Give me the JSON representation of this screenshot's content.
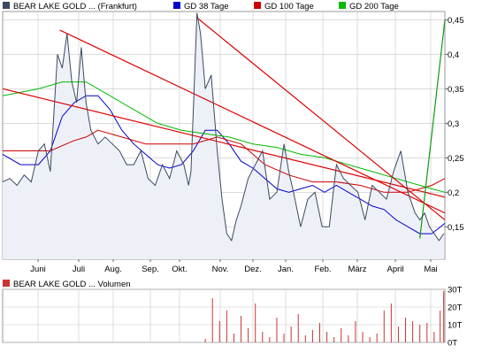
{
  "colors": {
    "price": "#3a4a5e",
    "price_fill": "#eef0f8",
    "gd38": "#0000cc",
    "gd100": "#cc0000",
    "gd200": "#00bb00",
    "trend_red": "#dd0000",
    "trend_green": "#119911",
    "volume": "#cc3333",
    "grid": "#c8c8c8",
    "legend_price_box": "#3a4a5e"
  },
  "legend": {
    "price": "BEAR LAKE GOLD ... (Frankfurt)",
    "gd38": "GD 38 Tage",
    "gd100": "GD 100 Tage",
    "gd200": "GD 200 Tage"
  },
  "volume_legend": "BEAR LAKE GOLD ... Volumen",
  "chart_data": [
    {
      "type": "line",
      "title": "",
      "x_labels": [
        "Juni",
        "Juli",
        "Aug.",
        "Sep.",
        "Okt.",
        "Nov.",
        "Dez.",
        "Jan.",
        "Feb.",
        "März",
        "April",
        "Mai"
      ],
      "y_ticks": [
        "0,45",
        "0,4",
        "0,35",
        "0,3",
        "0,25",
        "0,2",
        "0,15"
      ],
      "ylim": [
        0.103,
        0.462
      ],
      "x_range_days": [
        0,
        371
      ],
      "grid": true,
      "legend_position": "top",
      "series": [
        {
          "name": "BEAR LAKE GOLD ... (Frankfurt)",
          "x": [
            0,
            6,
            12,
            18,
            24,
            30,
            35,
            40,
            46,
            50,
            54,
            58,
            62,
            66,
            70,
            74,
            80,
            86,
            92,
            98,
            104,
            110,
            116,
            122,
            128,
            134,
            140,
            146,
            152,
            156,
            158,
            160,
            163,
            166,
            170,
            175,
            180,
            184,
            188,
            192,
            196,
            200,
            206,
            212,
            218,
            224,
            230,
            236,
            240,
            244,
            250,
            256,
            262,
            268,
            274,
            280,
            286,
            292,
            298,
            304,
            310,
            316,
            322,
            328,
            334,
            340,
            346,
            350,
            354,
            358,
            362,
            366,
            370
          ],
          "y": [
            0.215,
            0.22,
            0.21,
            0.225,
            0.215,
            0.26,
            0.27,
            0.23,
            0.4,
            0.38,
            0.43,
            0.36,
            0.33,
            0.41,
            0.33,
            0.29,
            0.27,
            0.28,
            0.27,
            0.26,
            0.24,
            0.24,
            0.26,
            0.22,
            0.21,
            0.24,
            0.22,
            0.26,
            0.24,
            0.21,
            0.23,
            0.32,
            0.46,
            0.43,
            0.35,
            0.37,
            0.26,
            0.19,
            0.14,
            0.13,
            0.16,
            0.18,
            0.22,
            0.24,
            0.26,
            0.19,
            0.2,
            0.27,
            0.23,
            0.2,
            0.15,
            0.19,
            0.2,
            0.15,
            0.15,
            0.24,
            0.22,
            0.21,
            0.2,
            0.16,
            0.21,
            0.2,
            0.19,
            0.23,
            0.26,
            0.2,
            0.17,
            0.16,
            0.17,
            0.15,
            0.14,
            0.13,
            0.14
          ]
        },
        {
          "name": "GD 38 Tage",
          "x": [
            0,
            15,
            30,
            40,
            50,
            60,
            70,
            80,
            90,
            100,
            110,
            120,
            130,
            140,
            150,
            160,
            170,
            180,
            190,
            200,
            210,
            220,
            230,
            240,
            250,
            260,
            270,
            280,
            290,
            300,
            310,
            320,
            330,
            340,
            350,
            360,
            371
          ],
          "y": [
            0.255,
            0.24,
            0.24,
            0.26,
            0.31,
            0.33,
            0.34,
            0.34,
            0.32,
            0.29,
            0.27,
            0.255,
            0.24,
            0.235,
            0.24,
            0.26,
            0.29,
            0.29,
            0.27,
            0.245,
            0.235,
            0.22,
            0.205,
            0.2,
            0.205,
            0.21,
            0.2,
            0.21,
            0.2,
            0.19,
            0.18,
            0.175,
            0.16,
            0.15,
            0.14,
            0.14,
            0.155
          ]
        },
        {
          "name": "GD 100 Tage",
          "x": [
            0,
            20,
            40,
            60,
            70,
            80,
            100,
            120,
            140,
            160,
            180,
            200,
            210,
            220,
            240,
            260,
            280,
            300,
            320,
            340,
            350,
            360,
            371
          ],
          "y": [
            0.26,
            0.26,
            0.26,
            0.275,
            0.28,
            0.29,
            0.28,
            0.27,
            0.27,
            0.27,
            0.28,
            0.27,
            0.255,
            0.24,
            0.225,
            0.215,
            0.215,
            0.21,
            0.2,
            0.2,
            0.205,
            0.21,
            0.22
          ]
        },
        {
          "name": "GD 200 Tage",
          "x": [
            0,
            30,
            50,
            70,
            90,
            110,
            130,
            150,
            170,
            190,
            210,
            230,
            250,
            270,
            290,
            310,
            330,
            350,
            360,
            371
          ],
          "y": [
            0.34,
            0.35,
            0.36,
            0.36,
            0.34,
            0.32,
            0.3,
            0.29,
            0.285,
            0.28,
            0.27,
            0.265,
            0.255,
            0.25,
            0.24,
            0.23,
            0.22,
            0.21,
            0.205,
            0.2
          ]
        }
      ],
      "trend_lines": [
        {
          "color": "trend_red",
          "from": [
            48,
            0.435
          ],
          "to": [
            371,
            0.17
          ]
        },
        {
          "color": "trend_red",
          "from": [
            163,
            0.453
          ],
          "to": [
            371,
            0.16
          ]
        },
        {
          "color": "trend_red",
          "from": [
            0,
            0.35
          ],
          "to": [
            371,
            0.193
          ]
        },
        {
          "color": "trend_green",
          "from": [
            350,
            0.133
          ],
          "to": [
            371,
            0.45
          ]
        }
      ]
    },
    {
      "type": "bar",
      "title": "",
      "y_ticks": [
        "30T",
        "20T",
        "10T",
        "0T"
      ],
      "ylim": [
        0,
        30
      ],
      "series": [
        {
          "name": "BEAR LAKE GOLD ... Volumen",
          "x": [
            170,
            176,
            182,
            188,
            194,
            200,
            206,
            212,
            218,
            224,
            230,
            236,
            242,
            248,
            254,
            260,
            266,
            272,
            278,
            284,
            290,
            296,
            302,
            308,
            314,
            320,
            326,
            332,
            338,
            344,
            350,
            356,
            362,
            367,
            370
          ],
          "values": [
            2,
            25,
            12,
            18,
            5,
            15,
            8,
            22,
            6,
            3,
            14,
            5,
            9,
            16,
            4,
            7,
            11,
            6,
            3,
            8,
            4,
            12,
            6,
            3,
            5,
            18,
            22,
            9,
            14,
            12,
            10,
            11,
            6,
            18,
            29
          ]
        }
      ]
    }
  ]
}
